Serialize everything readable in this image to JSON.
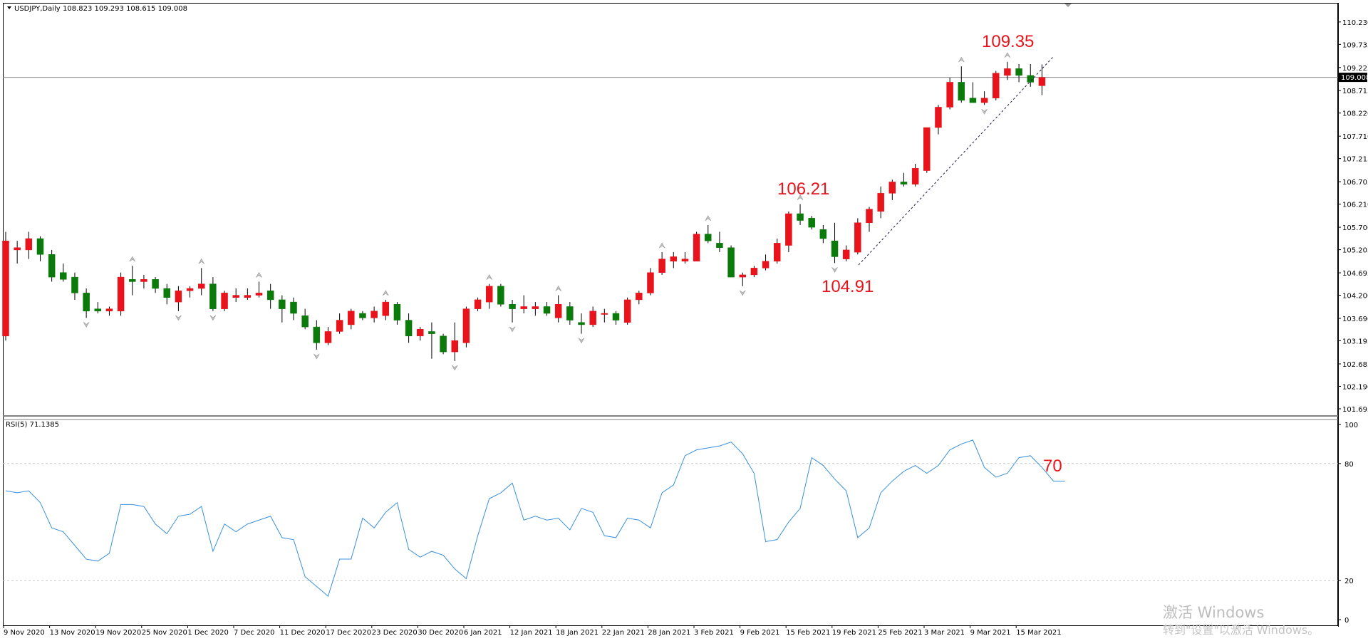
{
  "colors": {
    "bull": "#e8131b",
    "bear": "#0a7a0a",
    "wick": "#000000",
    "rsi_line": "#3a8fdc",
    "annotation": "#e8131b",
    "grid": "#c8c8c8",
    "price_tag_bg": "#000000",
    "price_tag_fg": "#ffffff"
  },
  "header": {
    "symbol_label": "USDJPY,Daily",
    "ohlc_label": "108.823 109.293 108.615 109.008",
    "collapse_icon": "triangle-down-icon"
  },
  "rsi_header": {
    "label": "RSI(5) 71.1385"
  },
  "current_price_tag": "109.008",
  "annotations": {
    "high": "109.35",
    "mid": "106.21",
    "low": "104.91",
    "rsi": "70"
  },
  "watermark": {
    "line1": "激活 Windows",
    "line2": "转到\"设置\"以激活 Windows。"
  },
  "chart_data": [
    {
      "type": "candlestick",
      "title": "USDJPY,Daily",
      "subtitle": "108.823 109.293 108.615 109.008",
      "ylim": [
        101.6,
        110.4
      ],
      "y_ticks": [
        "110.230",
        "109.735",
        "109.225",
        "108.715",
        "108.220",
        "107.710",
        "107.215",
        "106.705",
        "106.210",
        "105.700",
        "105.205",
        "104.695",
        "104.200",
        "103.690",
        "103.195",
        "102.685",
        "102.190",
        "101.695"
      ],
      "x_ticks": [
        "9 Nov 2020",
        "13 Nov 2020",
        "19 Nov 2020",
        "25 Nov 2020",
        "1 Dec 2020",
        "7 Dec 2020",
        "11 Dec 2020",
        "17 Dec 2020",
        "23 Dec 2020",
        "30 Dec 2020",
        "6 Jan 2021",
        "12 Jan 2021",
        "18 Jan 2021",
        "22 Jan 2021",
        "28 Jan 2021",
        "3 Feb 2021",
        "9 Feb 2021",
        "15 Feb 2021",
        "19 Feb 2021",
        "25 Feb 2021",
        "3 Mar 2021",
        "9 Mar 2021",
        "15 Mar 2021"
      ],
      "current_price": 109.008,
      "annotations": [
        {
          "text": "109.35",
          "value": 109.35
        },
        {
          "text": "106.21",
          "value": 106.21
        },
        {
          "text": "104.91",
          "value": 104.91
        }
      ],
      "candles": [
        {
          "o": 103.3,
          "h": 105.6,
          "l": 103.2,
          "c": 105.4
        },
        {
          "o": 105.2,
          "h": 105.4,
          "l": 104.9,
          "c": 105.25
        },
        {
          "o": 105.2,
          "h": 105.6,
          "l": 105.0,
          "c": 105.45
        },
        {
          "o": 105.45,
          "h": 105.5,
          "l": 104.95,
          "c": 105.1
        },
        {
          "o": 105.1,
          "h": 105.2,
          "l": 104.5,
          "c": 104.6
        },
        {
          "o": 104.7,
          "h": 104.9,
          "l": 104.5,
          "c": 104.55
        },
        {
          "o": 104.6,
          "h": 104.7,
          "l": 104.1,
          "c": 104.25
        },
        {
          "o": 104.25,
          "h": 104.35,
          "l": 103.7,
          "c": 103.85
        },
        {
          "o": 103.9,
          "h": 104.05,
          "l": 103.8,
          "c": 103.85
        },
        {
          "o": 103.85,
          "h": 103.95,
          "l": 103.75,
          "c": 103.9
        },
        {
          "o": 103.85,
          "h": 104.7,
          "l": 103.75,
          "c": 104.6
        },
        {
          "o": 104.55,
          "h": 104.85,
          "l": 104.2,
          "c": 104.5
        },
        {
          "o": 104.5,
          "h": 104.65,
          "l": 104.35,
          "c": 104.55
        },
        {
          "o": 104.55,
          "h": 104.6,
          "l": 104.25,
          "c": 104.35
        },
        {
          "o": 104.35,
          "h": 104.45,
          "l": 104.0,
          "c": 104.15
        },
        {
          "o": 104.05,
          "h": 104.4,
          "l": 103.85,
          "c": 104.3
        },
        {
          "o": 104.3,
          "h": 104.4,
          "l": 104.15,
          "c": 104.35
        },
        {
          "o": 104.35,
          "h": 104.8,
          "l": 104.2,
          "c": 104.45
        },
        {
          "o": 104.45,
          "h": 104.6,
          "l": 103.85,
          "c": 103.9
        },
        {
          "o": 103.9,
          "h": 104.3,
          "l": 103.85,
          "c": 104.25
        },
        {
          "o": 104.15,
          "h": 104.35,
          "l": 104.05,
          "c": 104.2
        },
        {
          "o": 104.15,
          "h": 104.35,
          "l": 104.1,
          "c": 104.2
        },
        {
          "o": 104.2,
          "h": 104.5,
          "l": 104.15,
          "c": 104.25
        },
        {
          "o": 104.3,
          "h": 104.45,
          "l": 103.9,
          "c": 104.1
        },
        {
          "o": 104.1,
          "h": 104.2,
          "l": 103.6,
          "c": 103.9
        },
        {
          "o": 104.05,
          "h": 104.15,
          "l": 103.65,
          "c": 103.8
        },
        {
          "o": 103.75,
          "h": 103.9,
          "l": 103.45,
          "c": 103.5
        },
        {
          "o": 103.5,
          "h": 103.65,
          "l": 103.0,
          "c": 103.15
        },
        {
          "o": 103.15,
          "h": 103.5,
          "l": 103.1,
          "c": 103.4
        },
        {
          "o": 103.4,
          "h": 103.8,
          "l": 103.35,
          "c": 103.65
        },
        {
          "o": 103.55,
          "h": 103.9,
          "l": 103.45,
          "c": 103.85
        },
        {
          "o": 103.8,
          "h": 103.85,
          "l": 103.65,
          "c": 103.7
        },
        {
          "o": 103.7,
          "h": 103.95,
          "l": 103.6,
          "c": 103.85
        },
        {
          "o": 103.75,
          "h": 104.1,
          "l": 103.65,
          "c": 104.05
        },
        {
          "o": 104.0,
          "h": 104.05,
          "l": 103.55,
          "c": 103.65
        },
        {
          "o": 103.65,
          "h": 103.8,
          "l": 103.15,
          "c": 103.3
        },
        {
          "o": 103.3,
          "h": 103.5,
          "l": 103.2,
          "c": 103.45
        },
        {
          "o": 103.4,
          "h": 103.6,
          "l": 102.8,
          "c": 103.35
        },
        {
          "o": 103.3,
          "h": 103.35,
          "l": 102.9,
          "c": 102.95
        },
        {
          "o": 102.95,
          "h": 103.6,
          "l": 102.75,
          "c": 103.2
        },
        {
          "o": 103.15,
          "h": 103.95,
          "l": 103.05,
          "c": 103.9
        },
        {
          "o": 103.9,
          "h": 104.15,
          "l": 103.85,
          "c": 104.1
        },
        {
          "o": 104.05,
          "h": 104.45,
          "l": 103.9,
          "c": 104.4
        },
        {
          "o": 104.4,
          "h": 104.45,
          "l": 103.95,
          "c": 104.0
        },
        {
          "o": 104.0,
          "h": 104.1,
          "l": 103.6,
          "c": 103.9
        },
        {
          "o": 103.9,
          "h": 104.2,
          "l": 103.8,
          "c": 103.95
        },
        {
          "o": 103.9,
          "h": 104.05,
          "l": 103.75,
          "c": 103.95
        },
        {
          "o": 103.95,
          "h": 104.05,
          "l": 103.75,
          "c": 103.8
        },
        {
          "o": 103.7,
          "h": 104.2,
          "l": 103.6,
          "c": 104.0
        },
        {
          "o": 103.95,
          "h": 104.05,
          "l": 103.55,
          "c": 103.65
        },
        {
          "o": 103.6,
          "h": 103.8,
          "l": 103.35,
          "c": 103.55
        },
        {
          "o": 103.55,
          "h": 103.95,
          "l": 103.5,
          "c": 103.85
        },
        {
          "o": 103.8,
          "h": 103.9,
          "l": 103.6,
          "c": 103.8
        },
        {
          "o": 103.8,
          "h": 103.85,
          "l": 103.55,
          "c": 103.65
        },
        {
          "o": 103.6,
          "h": 104.15,
          "l": 103.55,
          "c": 104.1
        },
        {
          "o": 104.1,
          "h": 104.3,
          "l": 104.0,
          "c": 104.25
        },
        {
          "o": 104.25,
          "h": 104.8,
          "l": 104.2,
          "c": 104.7
        },
        {
          "o": 104.7,
          "h": 105.15,
          "l": 104.65,
          "c": 105.0
        },
        {
          "o": 104.95,
          "h": 105.15,
          "l": 104.8,
          "c": 105.05
        },
        {
          "o": 104.95,
          "h": 105.15,
          "l": 104.9,
          "c": 105.0
        },
        {
          "o": 104.95,
          "h": 105.6,
          "l": 104.95,
          "c": 105.55
        },
        {
          "o": 105.55,
          "h": 105.75,
          "l": 105.35,
          "c": 105.4
        },
        {
          "o": 105.35,
          "h": 105.6,
          "l": 105.15,
          "c": 105.25
        },
        {
          "o": 105.25,
          "h": 105.3,
          "l": 104.6,
          "c": 104.6
        },
        {
          "o": 104.6,
          "h": 104.7,
          "l": 104.4,
          "c": 104.65
        },
        {
          "o": 104.65,
          "h": 104.85,
          "l": 104.6,
          "c": 104.8
        },
        {
          "o": 104.8,
          "h": 105.1,
          "l": 104.75,
          "c": 104.95
        },
        {
          "o": 104.95,
          "h": 105.45,
          "l": 104.9,
          "c": 105.35
        },
        {
          "o": 105.3,
          "h": 106.05,
          "l": 105.15,
          "c": 106.0
        },
        {
          "o": 106.0,
          "h": 106.21,
          "l": 105.75,
          "c": 105.85
        },
        {
          "o": 105.9,
          "h": 105.95,
          "l": 105.65,
          "c": 105.7
        },
        {
          "o": 105.65,
          "h": 105.75,
          "l": 105.35,
          "c": 105.45
        },
        {
          "o": 105.4,
          "h": 105.8,
          "l": 104.91,
          "c": 105.05
        },
        {
          "o": 105.0,
          "h": 105.3,
          "l": 104.95,
          "c": 105.2
        },
        {
          "o": 105.15,
          "h": 105.9,
          "l": 105.1,
          "c": 105.8
        },
        {
          "o": 105.8,
          "h": 106.15,
          "l": 105.6,
          "c": 106.1
        },
        {
          "o": 106.05,
          "h": 106.6,
          "l": 105.9,
          "c": 106.45
        },
        {
          "o": 106.45,
          "h": 106.75,
          "l": 106.3,
          "c": 106.7
        },
        {
          "o": 106.7,
          "h": 106.9,
          "l": 106.6,
          "c": 106.65
        },
        {
          "o": 106.65,
          "h": 107.1,
          "l": 106.6,
          "c": 107.0
        },
        {
          "o": 106.95,
          "h": 107.9,
          "l": 106.9,
          "c": 107.9
        },
        {
          "o": 107.9,
          "h": 108.4,
          "l": 107.75,
          "c": 108.35
        },
        {
          "o": 108.35,
          "h": 109.0,
          "l": 108.3,
          "c": 108.9
        },
        {
          "o": 108.9,
          "h": 109.25,
          "l": 108.45,
          "c": 108.5
        },
        {
          "o": 108.55,
          "h": 108.9,
          "l": 108.45,
          "c": 108.45
        },
        {
          "o": 108.45,
          "h": 108.7,
          "l": 108.4,
          "c": 108.55
        },
        {
          "o": 108.55,
          "h": 109.15,
          "l": 108.5,
          "c": 109.1
        },
        {
          "o": 109.05,
          "h": 109.35,
          "l": 108.95,
          "c": 109.2
        },
        {
          "o": 109.2,
          "h": 109.3,
          "l": 108.9,
          "c": 109.05
        },
        {
          "o": 109.05,
          "h": 109.3,
          "l": 108.8,
          "c": 108.9
        },
        {
          "o": 108.823,
          "h": 109.293,
          "l": 108.615,
          "c": 109.008
        }
      ]
    },
    {
      "type": "line",
      "title": "RSI(5) 71.1385",
      "ylim": [
        0,
        100
      ],
      "y_ticks": [
        "100",
        "80",
        "20",
        "0"
      ],
      "levels": [
        80,
        20
      ],
      "annotation": {
        "text": "70",
        "value": 70
      },
      "series": [
        {
          "values": [
            66,
            65,
            66,
            60,
            47,
            45,
            38,
            31,
            30,
            34,
            59,
            59,
            58,
            49,
            44,
            53,
            54,
            58,
            35,
            49,
            45,
            49,
            51,
            53,
            42,
            41,
            22,
            17,
            12,
            31,
            31,
            52,
            47,
            55,
            60,
            36,
            32,
            35,
            33,
            26,
            21,
            43,
            62,
            65,
            70,
            51,
            53,
            51,
            52,
            46,
            57,
            55,
            43,
            42,
            52,
            51,
            47,
            65,
            69,
            84,
            87,
            88,
            89,
            91,
            85,
            75,
            40,
            41,
            50,
            57,
            83,
            79,
            72,
            66,
            42,
            47,
            65,
            71,
            76,
            79,
            75,
            79,
            87,
            90,
            92,
            78,
            73,
            75,
            83,
            84,
            78,
            71,
            71
          ]
        }
      ]
    }
  ]
}
